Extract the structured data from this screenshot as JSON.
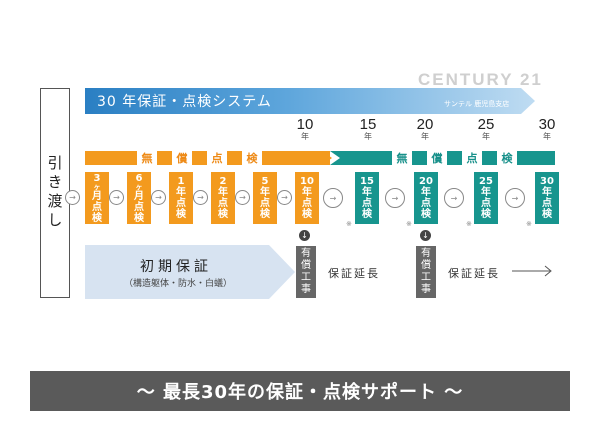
{
  "banner": {
    "title": "30 年保証・点検システム"
  },
  "brand": {
    "name": "CENTURY 21",
    "sub": "サンテル 鹿児島支店"
  },
  "handover": "引き渡し",
  "years": [
    {
      "num": "10",
      "unit": "年"
    },
    {
      "num": "15",
      "unit": "年"
    },
    {
      "num": "20",
      "unit": "年"
    },
    {
      "num": "25",
      "unit": "年"
    },
    {
      "num": "30",
      "unit": "年"
    }
  ],
  "strip": {
    "free_chars": [
      "無",
      "償",
      "点",
      "検"
    ],
    "paid_chars": [
      "無",
      "償",
      "点",
      "検"
    ],
    "colors": {
      "orange": "#f39a1e",
      "teal": "#17958e"
    }
  },
  "inspections": [
    {
      "l1": "3",
      "l2": "ヶ",
      "l3": "月",
      "l4": "点",
      "l5": "検"
    },
    {
      "l1": "6",
      "l2": "ヶ",
      "l3": "月",
      "l4": "点",
      "l5": "検"
    },
    {
      "l1": "1",
      "l2": "年",
      "l3": "点",
      "l4": "検",
      "l5": ""
    },
    {
      "l1": "2",
      "l2": "年",
      "l3": "点",
      "l4": "検",
      "l5": ""
    },
    {
      "l1": "5",
      "l2": "年",
      "l3": "点",
      "l4": "検",
      "l5": ""
    },
    {
      "l1": "10",
      "l2": "年",
      "l3": "点",
      "l4": "検",
      "l5": ""
    },
    {
      "l1": "15",
      "l2": "年",
      "l3": "点",
      "l4": "検",
      "l5": ""
    },
    {
      "l1": "20",
      "l2": "年",
      "l3": "点",
      "l4": "検",
      "l5": ""
    },
    {
      "l1": "25",
      "l2": "年",
      "l3": "点",
      "l4": "検",
      "l5": ""
    },
    {
      "l1": "30",
      "l2": "年",
      "l3": "点",
      "l4": "検",
      "l5": ""
    }
  ],
  "note_mark": "※",
  "arrow_glyph": "→",
  "initial": {
    "title": "初期保証",
    "sub": "（構造躯体・防水・白蟻）"
  },
  "paid_work": {
    "l1": "有",
    "l2": "償",
    "l3": "工",
    "l4": "事"
  },
  "extension": "保証延長",
  "bottom": "〜 最長30年の保証・点検サポート 〜"
}
